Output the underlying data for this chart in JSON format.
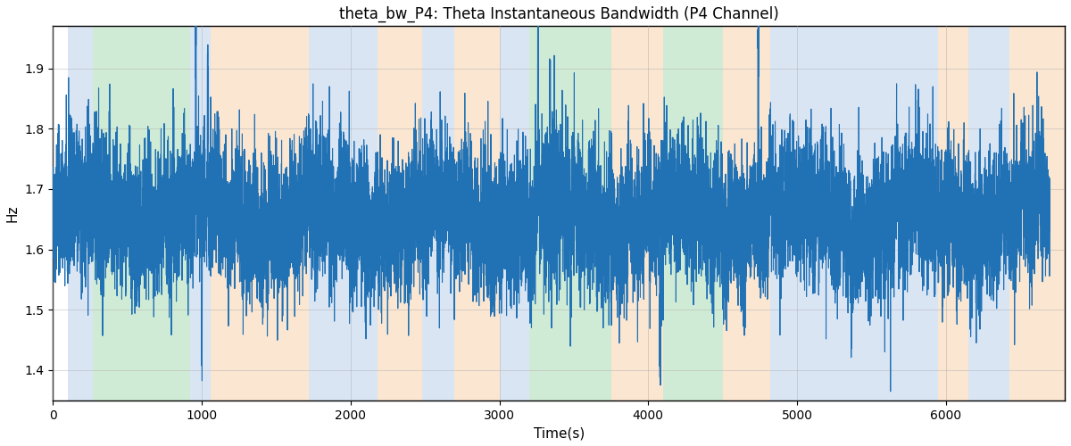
{
  "title": "theta_bw_P4: Theta Instantaneous Bandwidth (P4 Channel)",
  "xlabel": "Time(s)",
  "ylabel": "Hz",
  "xlim": [
    0,
    6800
  ],
  "ylim": [
    1.35,
    1.97
  ],
  "figsize": [
    12.0,
    5.0
  ],
  "dpi": 100,
  "line_color": "#2171b5",
  "line_width": 0.8,
  "background_color": "#ffffff",
  "grid_color": "#aaaaaa",
  "bands": [
    {
      "xmin": 100,
      "xmax": 270,
      "color": "#aec6e8",
      "alpha": 0.45
    },
    {
      "xmin": 270,
      "xmax": 920,
      "color": "#98d4a3",
      "alpha": 0.45
    },
    {
      "xmin": 920,
      "xmax": 1060,
      "color": "#aec6e8",
      "alpha": 0.45
    },
    {
      "xmin": 1060,
      "xmax": 1720,
      "color": "#f5c89a",
      "alpha": 0.45
    },
    {
      "xmin": 1720,
      "xmax": 2180,
      "color": "#aec6e8",
      "alpha": 0.45
    },
    {
      "xmin": 2180,
      "xmax": 2480,
      "color": "#f5c89a",
      "alpha": 0.45
    },
    {
      "xmin": 2480,
      "xmax": 2700,
      "color": "#aec6e8",
      "alpha": 0.45
    },
    {
      "xmin": 2700,
      "xmax": 3000,
      "color": "#f5c89a",
      "alpha": 0.45
    },
    {
      "xmin": 3000,
      "xmax": 3200,
      "color": "#aec6e8",
      "alpha": 0.45
    },
    {
      "xmin": 3200,
      "xmax": 3750,
      "color": "#98d4a3",
      "alpha": 0.45
    },
    {
      "xmin": 3750,
      "xmax": 4100,
      "color": "#f5c89a",
      "alpha": 0.45
    },
    {
      "xmin": 4100,
      "xmax": 4500,
      "color": "#98d4a3",
      "alpha": 0.45
    },
    {
      "xmin": 4500,
      "xmax": 4820,
      "color": "#f5c89a",
      "alpha": 0.45
    },
    {
      "xmin": 4820,
      "xmax": 5950,
      "color": "#aec6e8",
      "alpha": 0.45
    },
    {
      "xmin": 5950,
      "xmax": 6150,
      "color": "#f5c89a",
      "alpha": 0.45
    },
    {
      "xmin": 6150,
      "xmax": 6430,
      "color": "#aec6e8",
      "alpha": 0.45
    },
    {
      "xmin": 6430,
      "xmax": 6800,
      "color": "#f5c89a",
      "alpha": 0.45
    }
  ],
  "yticks": [
    1.4,
    1.5,
    1.6,
    1.7,
    1.8,
    1.9
  ],
  "xticks": [
    0,
    1000,
    2000,
    3000,
    4000,
    5000,
    6000
  ],
  "seed": 42,
  "n_points": 13400,
  "base": 1.655,
  "noise_std": 0.048,
  "slow_amp": 0.025,
  "slow_period": 800,
  "fast_amp": 0.018,
  "fast_period": 120
}
